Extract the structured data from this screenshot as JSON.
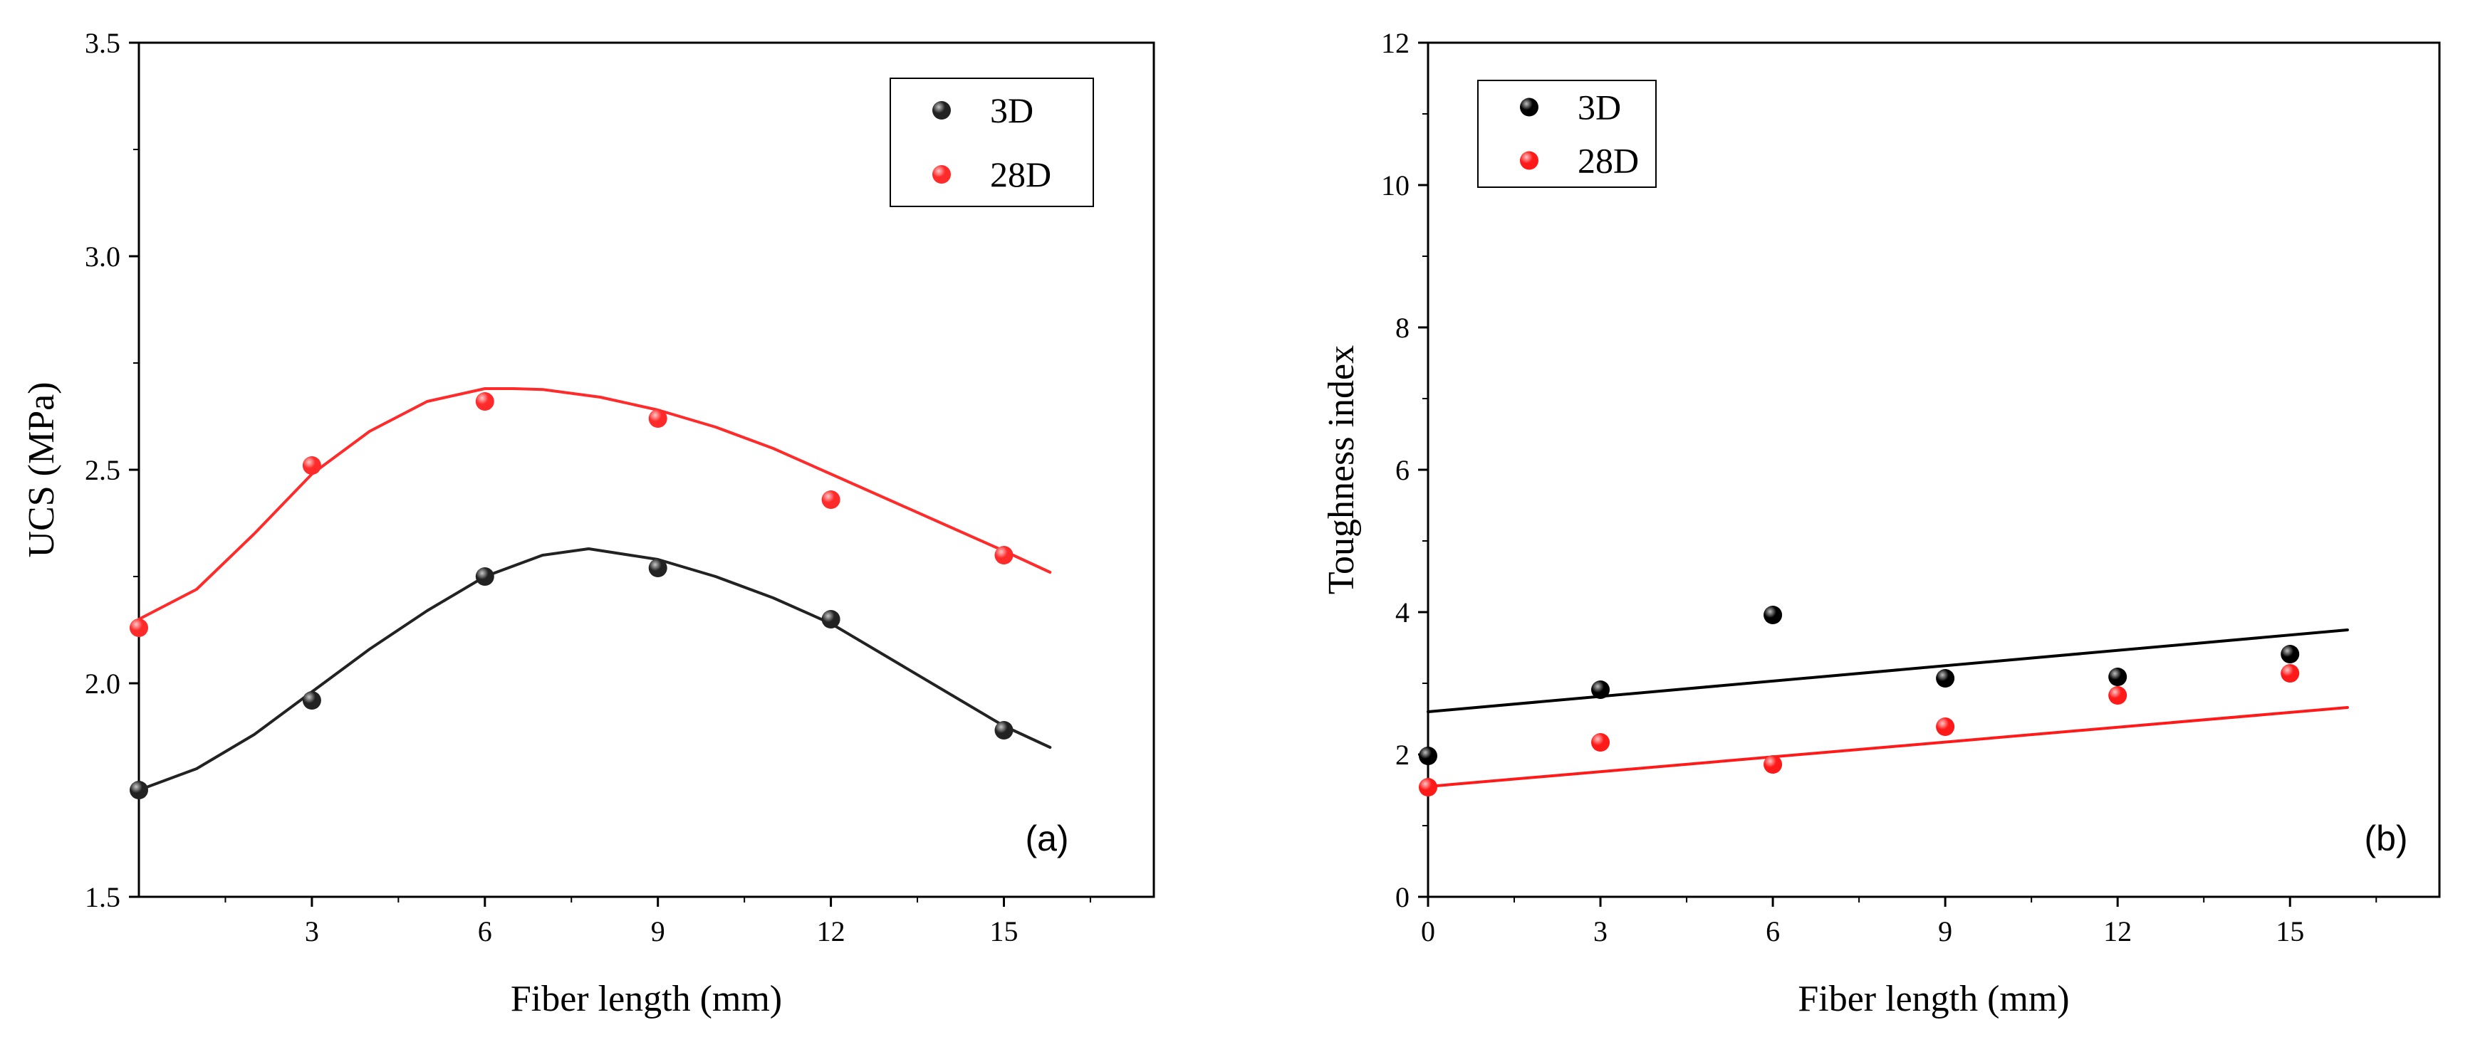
{
  "chart_data": [
    {
      "type": "scatter",
      "panel_label": "(a)",
      "xlabel": "Fiber length (mm)",
      "ylabel": "UCS (MPa)",
      "xlim": [
        0,
        17.6
      ],
      "ylim": [
        1.5,
        3.5
      ],
      "xticks": [
        3,
        6,
        9,
        12,
        15
      ],
      "xtick_labels": [
        "3",
        "6",
        "9",
        "12",
        "15"
      ],
      "yticks": [
        1.5,
        2.0,
        2.5,
        3.0,
        3.5
      ],
      "ytick_labels": [
        "1.5",
        "2.0",
        "2.5",
        "3.0",
        "3.5"
      ],
      "legend_position": "top-right",
      "grid": false,
      "series": [
        {
          "name": "3D",
          "color": "#222222",
          "marker": "sphere",
          "x": [
            0,
            3,
            6,
            9,
            12,
            15
          ],
          "y": [
            1.75,
            1.96,
            2.25,
            2.27,
            2.15,
            1.89
          ],
          "fit": {
            "x": [
              0,
              1,
              2,
              3,
              4,
              5,
              6,
              7,
              7.8,
              9,
              10,
              11,
              12,
              13,
              14,
              15,
              15.8
            ],
            "y": [
              1.75,
              1.8,
              1.88,
              1.98,
              2.08,
              2.17,
              2.25,
              2.3,
              2.315,
              2.29,
              2.25,
              2.2,
              2.14,
              2.06,
              1.98,
              1.9,
              1.85
            ]
          }
        },
        {
          "name": "28D",
          "color": "#ff2a2a",
          "marker": "sphere",
          "x": [
            0,
            3,
            6,
            9,
            12,
            15
          ],
          "y": [
            2.13,
            2.51,
            2.66,
            2.62,
            2.43,
            2.3
          ],
          "fit": {
            "x": [
              0,
              1,
              2,
              3,
              4,
              5,
              6,
              6.5,
              7,
              8,
              9,
              10,
              11,
              12,
              13,
              14,
              15,
              15.8
            ],
            "y": [
              2.15,
              2.22,
              2.35,
              2.49,
              2.59,
              2.66,
              2.69,
              2.69,
              2.688,
              2.67,
              2.64,
              2.6,
              2.55,
              2.49,
              2.43,
              2.37,
              2.31,
              2.26
            ]
          }
        }
      ]
    },
    {
      "type": "scatter",
      "panel_label": "(b)",
      "xlabel": "Fiber length (mm)",
      "ylabel": "Toughness index",
      "xlim": [
        0,
        17.6
      ],
      "ylim": [
        0,
        12
      ],
      "xticks": [
        0,
        3,
        6,
        9,
        12,
        15
      ],
      "xtick_labels": [
        "0",
        "3",
        "6",
        "9",
        "12",
        "15"
      ],
      "yticks": [
        0,
        2,
        4,
        6,
        8,
        10,
        12
      ],
      "ytick_labels": [
        "0",
        "2",
        "4",
        "6",
        "8",
        "10",
        "12"
      ],
      "legend_position": "top-left",
      "grid": false,
      "series": [
        {
          "name": "3D",
          "color": "#000000",
          "marker": "sphere",
          "x": [
            0,
            3,
            6,
            9,
            12,
            15
          ],
          "y": [
            1.98,
            2.91,
            3.96,
            3.07,
            3.09,
            3.41
          ],
          "fit": {
            "x": [
              0,
              16
            ],
            "y": [
              2.6,
              3.75
            ]
          }
        },
        {
          "name": "28D",
          "color": "#ff1a1a",
          "marker": "sphere",
          "x": [
            0,
            3,
            6,
            9,
            12,
            15
          ],
          "y": [
            1.54,
            2.17,
            1.86,
            2.39,
            2.83,
            3.14
          ],
          "fit": {
            "x": [
              0,
              16
            ],
            "y": [
              1.55,
              2.66
            ]
          }
        }
      ]
    }
  ]
}
